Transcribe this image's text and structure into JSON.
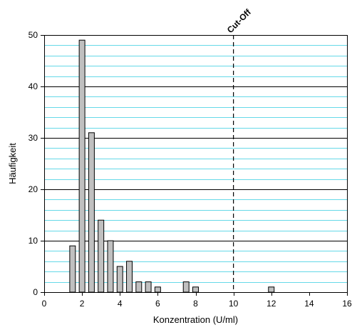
{
  "chart_data": {
    "type": "bar",
    "title": "",
    "xlabel": "Konzentration (U/ml)",
    "ylabel": "Häufigkeit",
    "xlim": [
      0,
      16
    ],
    "ylim": [
      0,
      50
    ],
    "x_ticks": [
      0,
      2,
      4,
      6,
      8,
      10,
      12,
      14,
      16
    ],
    "y_ticks": [
      0,
      10,
      20,
      30,
      40,
      50
    ],
    "minor_y_step": 2,
    "grid": {
      "major_color": "#000000",
      "minor_color": "#66d9e8"
    },
    "bar_width": 0.3,
    "bar_color": "#c0c0c0",
    "bars": [
      {
        "x": 1.5,
        "value": 9
      },
      {
        "x": 2.0,
        "value": 49
      },
      {
        "x": 2.5,
        "value": 31
      },
      {
        "x": 3.0,
        "value": 14
      },
      {
        "x": 3.5,
        "value": 10
      },
      {
        "x": 4.0,
        "value": 5
      },
      {
        "x": 4.5,
        "value": 6
      },
      {
        "x": 5.0,
        "value": 2
      },
      {
        "x": 5.5,
        "value": 2
      },
      {
        "x": 6.0,
        "value": 1
      },
      {
        "x": 7.5,
        "value": 2
      },
      {
        "x": 8.0,
        "value": 1
      },
      {
        "x": 12.0,
        "value": 1
      }
    ],
    "cutoff": {
      "x": 10,
      "label": "Cut-Off"
    }
  }
}
